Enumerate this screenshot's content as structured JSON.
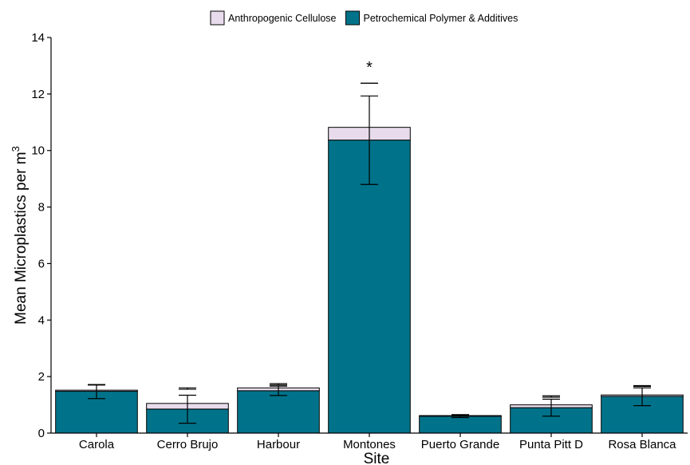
{
  "chart_data": {
    "type": "bar",
    "stacked": true,
    "title": "",
    "xlabel": "Site",
    "ylabel": "Mean Microplastics per m",
    "ylabel_superscript": "3",
    "ylim": [
      0,
      14
    ],
    "yticks": [
      0,
      2,
      4,
      6,
      8,
      10,
      12,
      14
    ],
    "grid": false,
    "legend_position": "top",
    "categories": [
      "Carola",
      "Cerro Brujo",
      "Harbour",
      "Montones",
      "Puerto Grande",
      "Punta Pitt D",
      "Rosa Blanca"
    ],
    "series": [
      {
        "name": "Petrochemical Polymer & Additives",
        "color": "#00738a",
        "values": [
          1.48,
          0.85,
          1.5,
          10.37,
          0.6,
          0.9,
          1.3
        ],
        "error": [
          [
            1.22,
            1.72
          ],
          [
            0.35,
            1.34
          ],
          [
            1.33,
            1.66
          ],
          [
            8.8,
            11.93
          ],
          [
            0.55,
            0.65
          ],
          [
            0.6,
            1.2
          ],
          [
            0.97,
            1.6
          ]
        ]
      },
      {
        "name": "Anthropogenic Cellulose",
        "color": "#e8dcec",
        "values": [
          0.04,
          0.2,
          0.1,
          0.45,
          0.02,
          0.1,
          0.05
        ],
        "error": [
          [
            1.7,
            1.72
          ],
          [
            1.55,
            1.6
          ],
          [
            1.7,
            1.75
          ],
          [
            12.38,
            12.38
          ],
          [
            0.65,
            0.65
          ],
          [
            1.27,
            1.32
          ],
          [
            1.65,
            1.68
          ]
        ]
      }
    ],
    "annotations": [
      {
        "category": "Montones",
        "text": "*",
        "y": 13.1
      }
    ]
  }
}
